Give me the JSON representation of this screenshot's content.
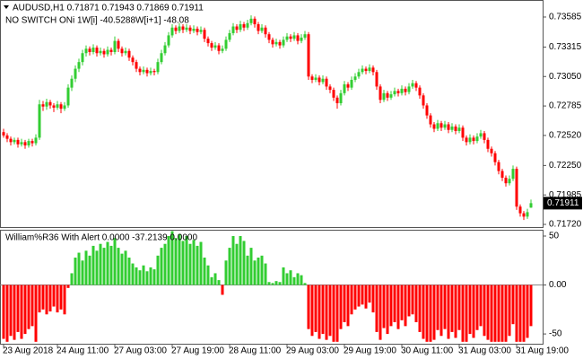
{
  "chart_data": [
    {
      "type": "candlestick",
      "title": "AUDUSD,H1 0.71871 0.71943 0.71869 0.71911",
      "subtitle": "NO SWITCH ONi 1W[i] -40.5288W[i+1] -48.08",
      "up_color": "#32cd32",
      "down_color": "#ff0000",
      "ylim": [
        0.71696,
        0.73722
      ],
      "yticks": [
        0.73585,
        0.73315,
        {
          "value": 0.7305,
          "label": "0.73050"
        },
        0.72785,
        {
          "value": 0.7252,
          "label": "0.72520"
        },
        {
          "value": 0.7225,
          "label": "0.72250"
        },
        0.71985,
        {
          "value": 0.7172,
          "label": "0.71720"
        }
      ],
      "ohlc": [
        [
          0.7255,
          0.7258,
          0.725,
          0.7252
        ],
        [
          0.7252,
          0.7254,
          0.7246,
          0.7249
        ],
        [
          0.7249,
          0.7251,
          0.7243,
          0.7246
        ],
        [
          0.7246,
          0.725,
          0.7244,
          0.7248
        ],
        [
          0.7248,
          0.725,
          0.7241,
          0.7244
        ],
        [
          0.7244,
          0.7249,
          0.7242,
          0.7246
        ],
        [
          0.7246,
          0.7248,
          0.724,
          0.7243
        ],
        [
          0.7243,
          0.7249,
          0.7241,
          0.7247
        ],
        [
          0.7247,
          0.7249,
          0.7242,
          0.7245
        ],
        [
          0.7245,
          0.7253,
          0.7243,
          0.725
        ],
        [
          0.725,
          0.7284,
          0.7248,
          0.728
        ],
        [
          0.728,
          0.7283,
          0.7274,
          0.7278
        ],
        [
          0.7278,
          0.7285,
          0.7275,
          0.7282
        ],
        [
          0.7282,
          0.7284,
          0.7276,
          0.7279
        ],
        [
          0.7279,
          0.7281,
          0.7273,
          0.7277
        ],
        [
          0.7277,
          0.7283,
          0.7275,
          0.728
        ],
        [
          0.728,
          0.7282,
          0.7272,
          0.7276
        ],
        [
          0.7276,
          0.7282,
          0.7274,
          0.7279
        ],
        [
          0.7279,
          0.7298,
          0.7277,
          0.7295
        ],
        [
          0.7295,
          0.7306,
          0.7292,
          0.7303
        ],
        [
          0.7303,
          0.7315,
          0.73,
          0.7312
        ],
        [
          0.7312,
          0.7321,
          0.7309,
          0.7318
        ],
        [
          0.7318,
          0.7329,
          0.7315,
          0.7326
        ],
        [
          0.7326,
          0.7333,
          0.7323,
          0.733
        ],
        [
          0.733,
          0.7332,
          0.7324,
          0.7327
        ],
        [
          0.7327,
          0.7334,
          0.7325,
          0.7331
        ],
        [
          0.7331,
          0.7333,
          0.7323,
          0.7326
        ],
        [
          0.7326,
          0.7331,
          0.7324,
          0.7328
        ],
        [
          0.7328,
          0.733,
          0.7322,
          0.7325
        ],
        [
          0.7325,
          0.7332,
          0.7323,
          0.7329
        ],
        [
          0.7329,
          0.7331,
          0.7324,
          0.7327
        ],
        [
          0.7327,
          0.7341,
          0.7325,
          0.7337
        ],
        [
          0.7337,
          0.7339,
          0.7327,
          0.733
        ],
        [
          0.733,
          0.7332,
          0.7323,
          0.7326
        ],
        [
          0.7326,
          0.7331,
          0.7324,
          0.7328
        ],
        [
          0.7328,
          0.733,
          0.7319,
          0.7322
        ],
        [
          0.7322,
          0.7324,
          0.7315,
          0.7318
        ],
        [
          0.7318,
          0.732,
          0.7309,
          0.7312
        ],
        [
          0.7312,
          0.7314,
          0.7306,
          0.7309
        ],
        [
          0.7309,
          0.7314,
          0.7307,
          0.7311
        ],
        [
          0.7311,
          0.7313,
          0.7305,
          0.7308
        ],
        [
          0.7308,
          0.7313,
          0.7306,
          0.731
        ],
        [
          0.731,
          0.7312,
          0.7306,
          0.7309
        ],
        [
          0.7309,
          0.7321,
          0.7307,
          0.7318
        ],
        [
          0.7318,
          0.7329,
          0.7316,
          0.7326
        ],
        [
          0.7326,
          0.7336,
          0.7324,
          0.7333
        ],
        [
          0.7333,
          0.7345,
          0.7331,
          0.7342
        ],
        [
          0.7342,
          0.7352,
          0.734,
          0.7349
        ],
        [
          0.7349,
          0.7351,
          0.7343,
          0.7346
        ],
        [
          0.7346,
          0.7353,
          0.7344,
          0.735
        ],
        [
          0.735,
          0.7352,
          0.7344,
          0.7347
        ],
        [
          0.7347,
          0.7352,
          0.7345,
          0.7349
        ],
        [
          0.7349,
          0.7351,
          0.7343,
          0.7346
        ],
        [
          0.7346,
          0.7351,
          0.7344,
          0.7348
        ],
        [
          0.7348,
          0.735,
          0.7342,
          0.7345
        ],
        [
          0.7345,
          0.735,
          0.7343,
          0.7347
        ],
        [
          0.7347,
          0.7349,
          0.7336,
          0.7339
        ],
        [
          0.7339,
          0.7341,
          0.7332,
          0.7335
        ],
        [
          0.7335,
          0.7337,
          0.7328,
          0.7331
        ],
        [
          0.7331,
          0.7336,
          0.7329,
          0.7333
        ],
        [
          0.7333,
          0.7335,
          0.7325,
          0.7328
        ],
        [
          0.7328,
          0.7333,
          0.7326,
          0.733
        ],
        [
          0.733,
          0.7341,
          0.7328,
          0.7338
        ],
        [
          0.7338,
          0.7347,
          0.7336,
          0.7344
        ],
        [
          0.7344,
          0.7353,
          0.7342,
          0.735
        ],
        [
          0.735,
          0.7352,
          0.7344,
          0.7347
        ],
        [
          0.7347,
          0.7355,
          0.7345,
          0.7352
        ],
        [
          0.7352,
          0.7354,
          0.7346,
          0.7349
        ],
        [
          0.7349,
          0.7356,
          0.7347,
          0.7353
        ],
        [
          0.7353,
          0.736,
          0.7351,
          0.7357
        ],
        [
          0.7357,
          0.7359,
          0.7349,
          0.7352
        ],
        [
          0.7352,
          0.7354,
          0.7343,
          0.7346
        ],
        [
          0.7346,
          0.7352,
          0.7344,
          0.7349
        ],
        [
          0.7349,
          0.7351,
          0.734,
          0.7343
        ],
        [
          0.7343,
          0.7345,
          0.7335,
          0.7338
        ],
        [
          0.7338,
          0.734,
          0.7331,
          0.7334
        ],
        [
          0.7334,
          0.7339,
          0.7332,
          0.7336
        ],
        [
          0.7336,
          0.7338,
          0.733,
          0.7333
        ],
        [
          0.7333,
          0.7341,
          0.7331,
          0.7338
        ],
        [
          0.7338,
          0.7344,
          0.7336,
          0.7341
        ],
        [
          0.7341,
          0.7343,
          0.7336,
          0.7339
        ],
        [
          0.7339,
          0.7345,
          0.7337,
          0.7342
        ],
        [
          0.7342,
          0.7344,
          0.7334,
          0.7337
        ],
        [
          0.7337,
          0.7343,
          0.7335,
          0.734
        ],
        [
          0.734,
          0.7346,
          0.7338,
          0.7343
        ],
        [
          0.7343,
          0.7345,
          0.7302,
          0.7305
        ],
        [
          0.7305,
          0.7307,
          0.7299,
          0.7302
        ],
        [
          0.7302,
          0.7307,
          0.73,
          0.7304
        ],
        [
          0.7304,
          0.7306,
          0.7297,
          0.73
        ],
        [
          0.73,
          0.7306,
          0.7298,
          0.7303
        ],
        [
          0.7303,
          0.7305,
          0.7293,
          0.7296
        ],
        [
          0.7296,
          0.7298,
          0.729,
          0.7293
        ],
        [
          0.7293,
          0.7295,
          0.7283,
          0.7286
        ],
        [
          0.7286,
          0.7288,
          0.7276,
          0.7281
        ],
        [
          0.7281,
          0.7293,
          0.7279,
          0.729
        ],
        [
          0.729,
          0.7301,
          0.7288,
          0.7298
        ],
        [
          0.7298,
          0.73,
          0.7292,
          0.7295
        ],
        [
          0.7295,
          0.7305,
          0.7293,
          0.7302
        ],
        [
          0.7302,
          0.7308,
          0.73,
          0.7305
        ],
        [
          0.7305,
          0.7312,
          0.7303,
          0.7309
        ],
        [
          0.7309,
          0.7315,
          0.7307,
          0.7312
        ],
        [
          0.7312,
          0.7314,
          0.7307,
          0.731
        ],
        [
          0.731,
          0.7316,
          0.7308,
          0.7313
        ],
        [
          0.7313,
          0.7315,
          0.7306,
          0.7309
        ],
        [
          0.7309,
          0.7311,
          0.7293,
          0.7296
        ],
        [
          0.7296,
          0.7298,
          0.7281,
          0.7284
        ],
        [
          0.7284,
          0.7293,
          0.7282,
          0.729
        ],
        [
          0.729,
          0.7292,
          0.7283,
          0.7286
        ],
        [
          0.7286,
          0.7292,
          0.7284,
          0.7289
        ],
        [
          0.7289,
          0.7295,
          0.7287,
          0.7292
        ],
        [
          0.7292,
          0.7294,
          0.7287,
          0.729
        ],
        [
          0.729,
          0.7297,
          0.7288,
          0.7294
        ],
        [
          0.7294,
          0.7296,
          0.7288,
          0.7291
        ],
        [
          0.7291,
          0.7299,
          0.7289,
          0.7296
        ],
        [
          0.7296,
          0.7302,
          0.7294,
          0.7299
        ],
        [
          0.7299,
          0.7301,
          0.7292,
          0.7295
        ],
        [
          0.7295,
          0.7297,
          0.7285,
          0.7288
        ],
        [
          0.7288,
          0.729,
          0.7276,
          0.7279
        ],
        [
          0.7279,
          0.7281,
          0.7267,
          0.727
        ],
        [
          0.727,
          0.7272,
          0.7259,
          0.7262
        ],
        [
          0.7262,
          0.7264,
          0.7255,
          0.7258
        ],
        [
          0.7258,
          0.7266,
          0.7256,
          0.7263
        ],
        [
          0.7263,
          0.7265,
          0.7256,
          0.7259
        ],
        [
          0.7259,
          0.7265,
          0.7257,
          0.7262
        ],
        [
          0.7262,
          0.7264,
          0.7254,
          0.7257
        ],
        [
          0.7257,
          0.7263,
          0.7255,
          0.726
        ],
        [
          0.726,
          0.7262,
          0.7253,
          0.7256
        ],
        [
          0.7256,
          0.7262,
          0.7254,
          0.7259
        ],
        [
          0.7259,
          0.7261,
          0.7247,
          0.725
        ],
        [
          0.725,
          0.7252,
          0.7243,
          0.7246
        ],
        [
          0.7246,
          0.7253,
          0.7244,
          0.725
        ],
        [
          0.725,
          0.7252,
          0.7244,
          0.7247
        ],
        [
          0.7247,
          0.7254,
          0.7245,
          0.7251
        ],
        [
          0.7251,
          0.7257,
          0.7249,
          0.7254
        ],
        [
          0.7254,
          0.7256,
          0.7245,
          0.7248
        ],
        [
          0.7248,
          0.725,
          0.7237,
          0.724
        ],
        [
          0.724,
          0.7242,
          0.7233,
          0.7236
        ],
        [
          0.7236,
          0.7238,
          0.7225,
          0.7228
        ],
        [
          0.7228,
          0.723,
          0.7217,
          0.722
        ],
        [
          0.722,
          0.7222,
          0.7211,
          0.7214
        ],
        [
          0.7214,
          0.7216,
          0.7206,
          0.7209
        ],
        [
          0.7209,
          0.7216,
          0.7207,
          0.7213
        ],
        [
          0.7213,
          0.7225,
          0.7211,
          0.7222
        ],
        [
          0.7222,
          0.7224,
          0.7185,
          0.7188
        ],
        [
          0.7188,
          0.719,
          0.7179,
          0.7182
        ],
        [
          0.7182,
          0.7184,
          0.7176,
          0.7179
        ],
        [
          0.7179,
          0.7186,
          0.7177,
          0.7183
        ],
        [
          0.71871,
          0.71943,
          0.71869,
          0.71911
        ]
      ]
    },
    {
      "type": "bar",
      "title": "William%R36 With Alert 0.0000 -37.2139 0.0000",
      "up_color": "#32cd32",
      "down_color": "#ff0000",
      "ylim": [
        -60,
        55.5
      ],
      "yticks": [
        50,
        {
          "value": 0,
          "label": "0.00"
        },
        -50
      ],
      "categories": [
        "23 Aug 2018",
        null,
        null,
        null,
        null,
        null,
        null,
        null,
        null,
        null,
        null,
        null,
        null,
        null,
        null,
        "24 Aug 11:00",
        null,
        null,
        null,
        null,
        null,
        null,
        null,
        null,
        null,
        null,
        null,
        null,
        null,
        null,
        null,
        "27 Aug 03:00",
        null,
        null,
        null,
        null,
        null,
        null,
        null,
        null,
        null,
        null,
        null,
        null,
        null,
        null,
        null,
        "27 Aug 19:00",
        null,
        null,
        null,
        null,
        null,
        null,
        null,
        null,
        null,
        null,
        null,
        null,
        null,
        null,
        null,
        "28 Aug 11:00",
        null,
        null,
        null,
        null,
        null,
        null,
        null,
        null,
        null,
        null,
        null,
        null,
        null,
        null,
        null,
        "29 Aug 03:00",
        null,
        null,
        null,
        null,
        null,
        null,
        null,
        null,
        null,
        null,
        null,
        null,
        null,
        null,
        null,
        "29 Aug 19:00",
        null,
        null,
        null,
        null,
        null,
        null,
        null,
        null,
        null,
        null,
        null,
        null,
        null,
        null,
        null,
        "30 Aug 11:00",
        null,
        null,
        null,
        null,
        null,
        null,
        null,
        null,
        null,
        null,
        null,
        null,
        null,
        null,
        null,
        "31 Aug 03:00",
        null,
        null,
        null,
        null,
        null,
        null,
        null,
        null,
        null,
        null,
        null,
        null,
        null,
        null,
        null,
        "31 Aug 19:00",
        null,
        null,
        null,
        null
      ],
      "values": [
        -55,
        -58,
        -52,
        -56,
        -48,
        -55,
        -50,
        -45,
        -42,
        -58,
        -28,
        -25,
        -30,
        -27,
        -22,
        -28,
        -25,
        -30,
        -3,
        12,
        28,
        33,
        25,
        35,
        30,
        40,
        35,
        42,
        38,
        44,
        40,
        48,
        38,
        32,
        35,
        28,
        22,
        18,
        15,
        20,
        14,
        18,
        16,
        30,
        38,
        42,
        50,
        55,
        48,
        52,
        45,
        50,
        42,
        46,
        40,
        44,
        28,
        20,
        8,
        12,
        5,
        -10,
        25,
        38,
        50,
        42,
        50,
        45,
        30,
        38,
        25,
        28,
        30,
        22,
        3,
        2,
        4,
        3,
        18,
        12,
        15,
        8,
        12,
        10,
        2,
        -45,
        -52,
        -48,
        -55,
        -50,
        -56,
        -52,
        -58,
        -58,
        -45,
        -38,
        -42,
        -30,
        -25,
        -22,
        -20,
        -24,
        -18,
        -28,
        -48,
        -56,
        -44,
        -50,
        -42,
        -38,
        -45,
        -36,
        -42,
        -32,
        -30,
        -38,
        -48,
        -55,
        -58,
        -58,
        -56,
        -46,
        -52,
        -45,
        -55,
        -48,
        -54,
        -46,
        -58,
        -58,
        -50,
        -54,
        -46,
        -42,
        -52,
        -56,
        -58,
        -58,
        -58,
        -58,
        -58,
        -52,
        -40,
        -58,
        -58,
        -58,
        -54,
        -42
      ]
    }
  ]
}
